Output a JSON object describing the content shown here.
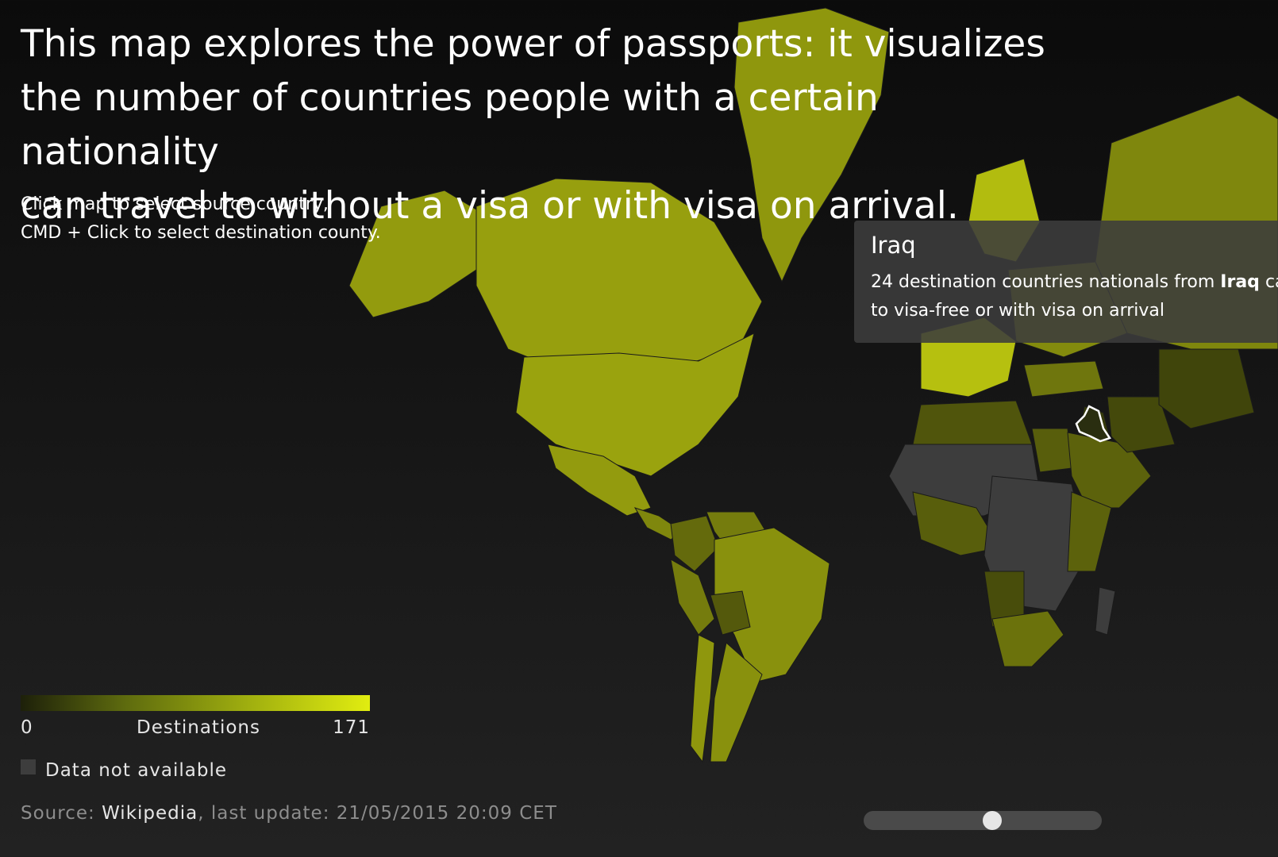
{
  "headline": {
    "line1": "This map explores the power of passports: it visualizes",
    "line2": "the number of countries people with a certain nationality",
    "line3": "can travel to without a visa or with visa on arrival."
  },
  "instructions": {
    "line1": "Click map to select source country,",
    "line2": "CMD + Click to select destination county."
  },
  "legend": {
    "min": "0",
    "title": "Destinations",
    "max": "171",
    "not_available": "Data not available",
    "colors": {
      "low": "#1d200a",
      "mid": "#9fae0f",
      "high": "#e1ed10",
      "na": "#3d3d3d"
    }
  },
  "source": {
    "prefix": "Source: ",
    "link": "Wikipedia",
    "suffix": ", last update: 21/05/2015 20:09 CET"
  },
  "tooltip": {
    "country": "Iraq",
    "count": "24",
    "text_a": "destination countries nationals from",
    "country_bold": "Iraq",
    "text_b": "can",
    "line2": "to visa-free or with visa on arrival"
  },
  "slider": {
    "position": 0.5
  },
  "map": {
    "selected_country": "Iraq",
    "background": "#141414",
    "regions": [
      {
        "name": "Greenland",
        "level": 0.58
      },
      {
        "name": "Alaska",
        "level": 0.6
      },
      {
        "name": "Canada",
        "level": 0.62
      },
      {
        "name": "United States",
        "level": 0.64
      },
      {
        "name": "Mexico",
        "level": 0.6
      },
      {
        "name": "Central America",
        "level": 0.5
      },
      {
        "name": "Colombia",
        "level": 0.36
      },
      {
        "name": "Venezuela",
        "level": 0.45
      },
      {
        "name": "Peru",
        "level": 0.45
      },
      {
        "name": "Brazil",
        "level": 0.55
      },
      {
        "name": "Bolivia",
        "level": 0.28
      },
      {
        "name": "Argentina",
        "level": 0.55
      },
      {
        "name": "Chile",
        "level": 0.58
      },
      {
        "name": "Scandinavia",
        "level": 0.76
      },
      {
        "name": "Western Europe",
        "level": 0.78
      },
      {
        "name": "Eastern Europe",
        "level": 0.52
      },
      {
        "name": "Russia",
        "level": 0.5
      },
      {
        "name": "Turkey",
        "level": 0.42
      },
      {
        "name": "North Africa",
        "level": 0.26
      },
      {
        "name": "Sahara (no data)",
        "level": -1
      },
      {
        "name": "Egypt",
        "level": 0.3
      },
      {
        "name": "Arabia",
        "level": 0.32
      },
      {
        "name": "Iraq",
        "level": 0.12
      },
      {
        "name": "Iran",
        "level": 0.2
      },
      {
        "name": "Central Asia",
        "level": 0.18
      },
      {
        "name": "West Africa",
        "level": 0.3
      },
      {
        "name": "Central Africa (no data)",
        "level": -1
      },
      {
        "name": "East Africa",
        "level": 0.32
      },
      {
        "name": "Angola",
        "level": 0.22
      },
      {
        "name": "Southern Africa",
        "level": 0.4
      },
      {
        "name": "Madagascar (no data)",
        "level": -1
      }
    ]
  }
}
